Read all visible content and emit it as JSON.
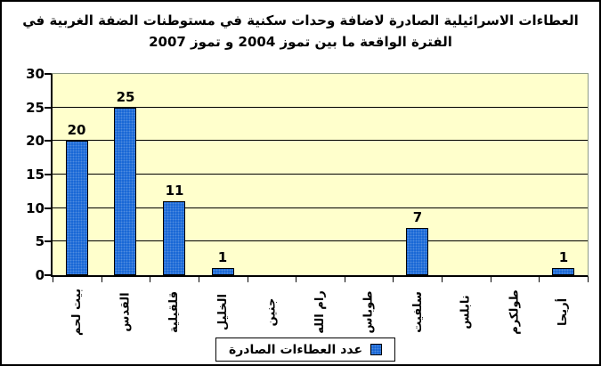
{
  "title": {
    "line1": "العطاءات الاسرائيلية الصادرة لاضافة وحدات سكنية في مستوطنات الضفة الغربية في",
    "line2": "الفترة الواقعة ما بين تموز 2004 و تموز 2007"
  },
  "legend": {
    "label": "عدد العطاءات الصادرة"
  },
  "colors": {
    "bar_fill": "#0C5FD4",
    "plot_background": "#FFFFCC",
    "plot_border": "#8F9C88",
    "axis_and_grid": "#000000",
    "text": "#000000",
    "page_background": "#FFFFFF"
  },
  "chart_data": {
    "type": "bar",
    "title": "العطاءات الاسرائيلية الصادرة لاضافة وحدات سكنية في مستوطنات الضفة الغربية في الفترة الواقعة ما بين تموز 2004 و تموز 2007",
    "categories": [
      "بيت لحم",
      "القدس",
      "قلقيلية",
      "الخليل",
      "جنين",
      "رام الله",
      "طوباس",
      "سلفيت",
      "نابلس",
      "طولكرم",
      "أريحا"
    ],
    "series": [
      {
        "name": "عدد العطاءات الصادرة",
        "values": [
          20,
          25,
          11,
          1,
          0,
          0,
          0,
          7,
          0,
          0,
          1
        ]
      }
    ],
    "data_labels_shown": [
      "20",
      "25",
      "11",
      "1",
      "7",
      "1"
    ],
    "xlabel": "",
    "ylabel": "",
    "ylim": [
      0,
      30
    ],
    "yticks": [
      0,
      5,
      10,
      15,
      20,
      25,
      30
    ],
    "grid": true,
    "x_label_rotation_degrees": 90,
    "legend_position": "bottom"
  }
}
